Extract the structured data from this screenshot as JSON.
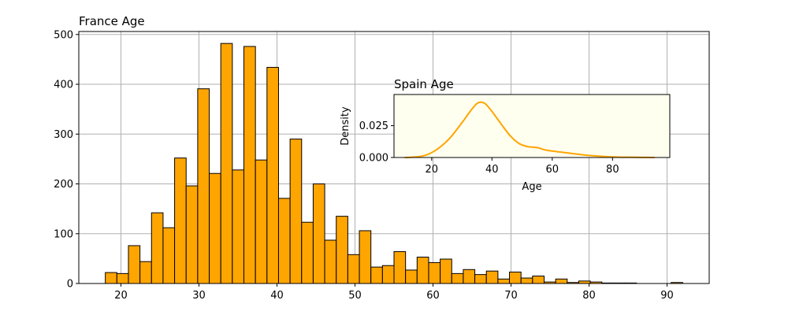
{
  "chart_data": [
    {
      "type": "bar",
      "title": "France Age",
      "xlabel": "",
      "ylabel": "",
      "xlim": [
        14.6,
        95.4
      ],
      "ylim": [
        0,
        506
      ],
      "grid": true,
      "bar_color": "#FFA500",
      "edge_color": "#000000",
      "x_ticks": [
        20,
        30,
        40,
        50,
        60,
        70,
        80,
        90
      ],
      "y_ticks": [
        0,
        100,
        200,
        300,
        400,
        500
      ],
      "bin_width": 1.48,
      "bins_start": [
        18,
        19.48,
        20.96,
        22.44,
        23.92,
        25.4,
        26.88,
        28.36,
        29.84,
        31.32,
        32.8,
        34.28,
        35.76,
        37.24,
        38.72,
        40.2,
        41.68,
        43.16,
        44.64,
        46.12,
        47.6,
        49.08,
        50.56,
        52.04,
        53.52,
        55.0,
        56.48,
        57.96,
        59.44,
        60.92,
        62.4,
        63.88,
        65.36,
        66.84,
        68.32,
        69.8,
        71.28,
        72.76,
        74.24,
        75.72,
        77.2,
        78.68,
        80.16,
        81.64,
        83.12,
        84.6,
        86.08,
        87.56,
        89.04,
        90.52
      ],
      "values": [
        22,
        20,
        76,
        44,
        142,
        112,
        252,
        196,
        391,
        221,
        482,
        228,
        476,
        248,
        434,
        171,
        290,
        123,
        200,
        87,
        135,
        58,
        106,
        33,
        36,
        64,
        27,
        53,
        42,
        49,
        20,
        28,
        18,
        25,
        9,
        23,
        11,
        15,
        3,
        9,
        2,
        5,
        3,
        1,
        1,
        1,
        0,
        0,
        0,
        2
      ]
    },
    {
      "type": "line",
      "title": "Spain Age",
      "xlabel": "Age",
      "ylabel": "Density",
      "xlim": [
        7.5,
        99
      ],
      "ylim": [
        0,
        0.0495
      ],
      "background": "#FFFFF0",
      "line_color": "#FFA500",
      "x_ticks": [
        20,
        40,
        60,
        80
      ],
      "y_ticks": [
        0.0,
        0.025
      ],
      "y_tick_labels": [
        "0.000",
        "0.025"
      ],
      "x": [
        11,
        14,
        18,
        22,
        26,
        30,
        33,
        35,
        36,
        37,
        38,
        40,
        43,
        46,
        49,
        52,
        55,
        58,
        62,
        66,
        70,
        74,
        78,
        82,
        86,
        90,
        94
      ],
      "y": [
        0.0,
        0.0003,
        0.0018,
        0.0068,
        0.0152,
        0.0272,
        0.037,
        0.0424,
        0.0434,
        0.0432,
        0.0418,
        0.0362,
        0.0265,
        0.0172,
        0.011,
        0.0085,
        0.0078,
        0.0058,
        0.0045,
        0.0033,
        0.0022,
        0.0013,
        0.0007,
        0.0003,
        0.0002,
        0.0001,
        0.0
      ]
    }
  ]
}
